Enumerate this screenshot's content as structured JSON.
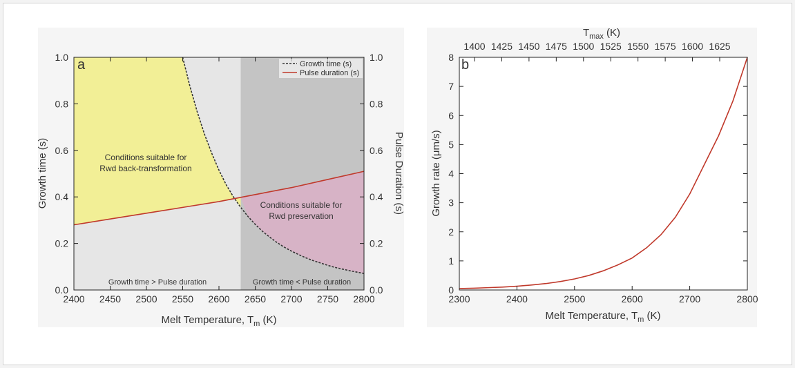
{
  "colors": {
    "yellow_region": "#f2ef96",
    "light_gray_region": "#e6e6e6",
    "dark_gray_region": "#c4c4c4",
    "pink_region": "#d7b3c6",
    "growth_line": "#333333",
    "pulse_line": "#c0392b",
    "rate_line": "#c0392b"
  },
  "chart_data": [
    {
      "type": "line",
      "panel_label": "a",
      "xlabel": "Melt Temperature, T",
      "xlabel_sub": "m",
      "xlabel_unit": " (K)",
      "ylabel": "Growth time (s)",
      "y2label": "Pulse Duration (s)",
      "xlim": [
        2400,
        2800
      ],
      "ylim": [
        0,
        1
      ],
      "y2lim": [
        0,
        1
      ],
      "x_ticks": [
        "2400",
        "2450",
        "2500",
        "2550",
        "2600",
        "2650",
        "2700",
        "2750",
        "2800"
      ],
      "y_ticks": [
        "0.0",
        "0.2",
        "0.4",
        "0.6",
        "0.8",
        "1.0"
      ],
      "legend": {
        "placement": "top-right",
        "entries": [
          "Growth time (s)",
          "Pulse duration (s)"
        ]
      },
      "series": [
        {
          "name": "Growth time (s)",
          "style": "dashed",
          "x": [
            2550,
            2560,
            2570,
            2580,
            2590,
            2600,
            2610,
            2620,
            2630,
            2640,
            2650,
            2660,
            2670,
            2680,
            2690,
            2700,
            2710,
            2720,
            2730,
            2740,
            2750,
            2760,
            2770,
            2780,
            2790,
            2800
          ],
          "y": [
            1.0,
            0.875,
            0.766,
            0.67,
            0.588,
            0.515,
            0.452,
            0.4,
            0.355,
            0.316,
            0.282,
            0.252,
            0.227,
            0.204,
            0.184,
            0.167,
            0.152,
            0.138,
            0.126,
            0.116,
            0.106,
            0.097,
            0.09,
            0.083,
            0.077,
            0.071
          ]
        },
        {
          "name": "Pulse duration (s)",
          "style": "solid",
          "x": [
            2400,
            2450,
            2500,
            2550,
            2600,
            2650,
            2700,
            2750,
            2800
          ],
          "y": [
            0.28,
            0.305,
            0.33,
            0.355,
            0.38,
            0.41,
            0.44,
            0.475,
            0.51
          ]
        }
      ],
      "crossover_x": 2630,
      "annotations": {
        "region_yellow_line1": "Conditions suitable for",
        "region_yellow_line2": "Rwd back-transformation",
        "region_pink_line1": "Conditions suitable for",
        "region_pink_line2": "Rwd preservation",
        "bottom_left": "Growth time > Pulse duration",
        "bottom_right": "Growth time < Pulse duration"
      }
    },
    {
      "type": "line",
      "panel_label": "b",
      "xlabel": "Melt Temperature, T",
      "xlabel_sub": "m",
      "xlabel_unit": " (K)",
      "ylabel": "Growth rate (μm/s)",
      "top_xlabel": "T",
      "top_xlabel_sub": "max",
      "top_xlabel_unit": " (K)",
      "xlim": [
        2300,
        2800
      ],
      "ylim": [
        0,
        8
      ],
      "x_ticks": [
        "2300",
        "2400",
        "2500",
        "2600",
        "2700",
        "2800"
      ],
      "y_ticks": [
        "0",
        "1",
        "2",
        "3",
        "4",
        "5",
        "6",
        "7",
        "8"
      ],
      "top_x_ticks": [
        "1400",
        "1425",
        "1450",
        "1475",
        "1500",
        "1525",
        "1550",
        "1575",
        "1600",
        "1625"
      ],
      "series": [
        {
          "name": "Growth rate",
          "x": [
            2300,
            2325,
            2350,
            2375,
            2400,
            2425,
            2450,
            2475,
            2500,
            2525,
            2550,
            2575,
            2600,
            2625,
            2650,
            2675,
            2700,
            2725,
            2750,
            2775,
            2800
          ],
          "y": [
            0.05,
            0.06,
            0.08,
            0.1,
            0.13,
            0.17,
            0.22,
            0.29,
            0.38,
            0.5,
            0.66,
            0.86,
            1.1,
            1.45,
            1.9,
            2.5,
            3.3,
            4.3,
            5.3,
            6.5,
            8.0
          ]
        }
      ]
    }
  ]
}
